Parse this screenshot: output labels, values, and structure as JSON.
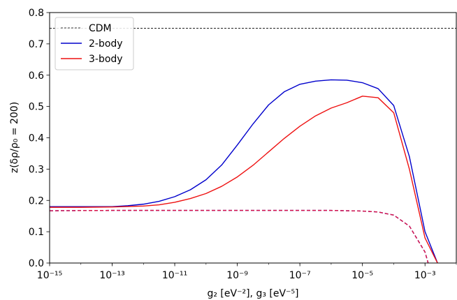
{
  "chart_data": {
    "type": "line",
    "xscale": "log",
    "xlim_exp": [
      -15,
      -2
    ],
    "ylim": [
      0,
      0.8
    ],
    "grid": false,
    "legend_position": "top-left",
    "xlabel": "g₂ [eV⁻²], g₃ [eV⁻⁵]",
    "ylabel": "z(δρ/ρ₀ = 200)",
    "x_ticks": [
      {
        "exp": -15,
        "label": "10⁻¹⁵"
      },
      {
        "exp": -13,
        "label": "10⁻¹³"
      },
      {
        "exp": -11,
        "label": "10⁻¹¹"
      },
      {
        "exp": -9,
        "label": "10⁻⁹"
      },
      {
        "exp": -7,
        "label": "10⁻⁷"
      },
      {
        "exp": -5,
        "label": "10⁻⁵"
      },
      {
        "exp": -3,
        "label": "10⁻³"
      }
    ],
    "y_ticks": [
      {
        "value": 0.0,
        "label": "0.0"
      },
      {
        "value": 0.1,
        "label": "0.1"
      },
      {
        "value": 0.2,
        "label": "0.2"
      },
      {
        "value": 0.3,
        "label": "0.3"
      },
      {
        "value": 0.4,
        "label": "0.4"
      },
      {
        "value": 0.5,
        "label": "0.5"
      },
      {
        "value": 0.6,
        "label": "0.6"
      },
      {
        "value": 0.7,
        "label": "0.7"
      },
      {
        "value": 0.8,
        "label": "0.8"
      }
    ],
    "reference_line": {
      "name": "CDM",
      "y": 0.75,
      "color": "#000000",
      "dash": true
    },
    "series": [
      {
        "name": "2-body",
        "color": "#0000cc",
        "dash": false,
        "x_exp": [
          -15,
          -14,
          -13,
          -12.5,
          -12,
          -11.5,
          -11,
          -10.5,
          -10,
          -9.5,
          -9,
          -8.5,
          -8,
          -7.5,
          -7,
          -6.5,
          -6,
          -5.5,
          -5,
          -4.5,
          -4,
          -3.5,
          -3,
          -2.6
        ],
        "y": [
          0.18,
          0.18,
          0.18,
          0.183,
          0.188,
          0.197,
          0.212,
          0.234,
          0.266,
          0.313,
          0.377,
          0.444,
          0.505,
          0.547,
          0.571,
          0.581,
          0.585,
          0.584,
          0.576,
          0.557,
          0.503,
          0.34,
          0.1,
          0.0
        ]
      },
      {
        "name": "3-body",
        "color": "#ee1111",
        "dash": false,
        "x_exp": [
          -15,
          -14,
          -13,
          -12,
          -11.5,
          -11,
          -10.5,
          -10,
          -9.5,
          -9,
          -8.5,
          -8,
          -7.5,
          -7,
          -6.5,
          -6,
          -5.5,
          -5,
          -4.5,
          -4,
          -3.5,
          -3,
          -2.6
        ],
        "y": [
          0.178,
          0.178,
          0.179,
          0.182,
          0.186,
          0.194,
          0.206,
          0.222,
          0.245,
          0.275,
          0.312,
          0.355,
          0.398,
          0.437,
          0.47,
          0.495,
          0.512,
          0.533,
          0.528,
          0.48,
          0.3,
          0.08,
          0.0
        ]
      },
      {
        "color": "#0000cc",
        "dash": true,
        "x_exp": [
          -15,
          -13,
          -11,
          -9,
          -7,
          -6,
          -5,
          -4.5,
          -4,
          -3.5,
          -3,
          -2.9
        ],
        "y": [
          0.167,
          0.168,
          0.168,
          0.168,
          0.168,
          0.168,
          0.166,
          0.163,
          0.153,
          0.118,
          0.035,
          0.0
        ]
      },
      {
        "color": "#dd1144",
        "dash": true,
        "x_exp": [
          -15,
          -13,
          -11,
          -9,
          -7,
          -6,
          -5,
          -4.5,
          -4,
          -3.5,
          -3,
          -2.9
        ],
        "y": [
          0.167,
          0.168,
          0.168,
          0.168,
          0.168,
          0.168,
          0.166,
          0.163,
          0.153,
          0.118,
          0.035,
          0.0
        ]
      }
    ],
    "legend": [
      {
        "label": "CDM",
        "color": "#000000",
        "dash": true
      },
      {
        "label": "2-body",
        "color": "#0000cc",
        "dash": false
      },
      {
        "label": "3-body",
        "color": "#ee1111",
        "dash": false
      }
    ]
  }
}
